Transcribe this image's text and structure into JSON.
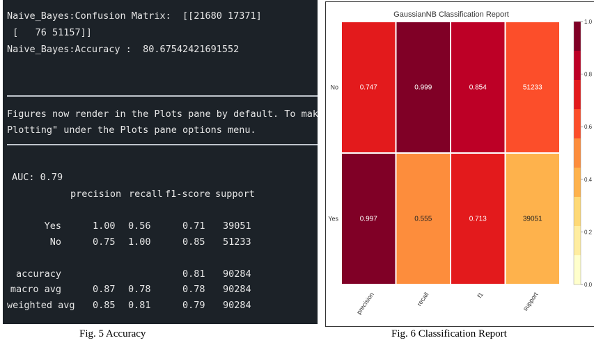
{
  "console": {
    "lines": [
      "Naive_Bayes:Confusion Matrix:  [[21680 17371]",
      " [   76 51157]]",
      "Naive_Bayes:Accuracy :  80.67542421691552",
      "Figures now render in the Plots pane by default. To make them also ap",
      "Plotting\" under the Plots pane options menu.",
      "AUC: 0.79"
    ],
    "report_header": [
      "precision",
      "recall",
      "f1-score",
      "support"
    ],
    "report_rows": [
      {
        "label": "Yes",
        "precision": "1.00",
        "recall": "0.56",
        "f1": "0.71",
        "support": "39051"
      },
      {
        "label": "No",
        "precision": "0.75",
        "recall": "1.00",
        "f1": "0.85",
        "support": "51233"
      },
      {
        "label": "accuracy",
        "precision": "",
        "recall": "",
        "f1": "0.81",
        "support": "90284"
      },
      {
        "label": "macro avg",
        "precision": "0.87",
        "recall": "0.78",
        "f1": "0.78",
        "support": "90284"
      },
      {
        "label": "weighted avg",
        "precision": "0.85",
        "recall": "0.81",
        "f1": "0.79",
        "support": "90284"
      }
    ]
  },
  "captions": {
    "left": "Fig. 5 Accuracy",
    "right": "Fig. 6 Classification Report"
  },
  "chart_data": {
    "type": "heatmap",
    "title": "GaussianNB Classification Report",
    "columns": [
      "precision",
      "recall",
      "f1",
      "support"
    ],
    "rows": [
      "No",
      "Yes"
    ],
    "cells": [
      [
        "0.747",
        "0.999",
        "0.854",
        "51233"
      ],
      [
        "0.997",
        "0.555",
        "0.713",
        "39051"
      ]
    ],
    "colors": [
      [
        "#e31a1c",
        "#800026",
        "#bd0026",
        "#fc4e2a"
      ],
      [
        "#800026",
        "#fd8d3c",
        "#e31a1c",
        "#feb24c"
      ]
    ],
    "colorbar": {
      "range": [
        0,
        1.0
      ],
      "ticks": [
        "1.0",
        "0.8",
        "0.6",
        "0.4",
        "0.2",
        "0.0"
      ],
      "bands": [
        "#800026",
        "#bd0026",
        "#e31a1c",
        "#fc4e2a",
        "#fd8d3c",
        "#feb24c",
        "#fed976",
        "#ffeda0",
        "#ffffcc"
      ]
    }
  }
}
